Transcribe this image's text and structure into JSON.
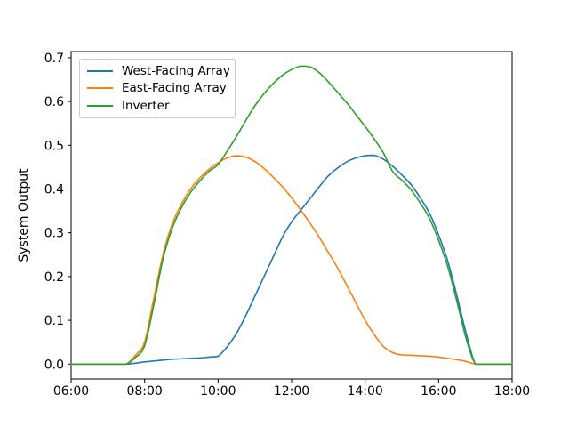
{
  "figure": {
    "background": "#ffffff"
  },
  "chart_data": {
    "type": "line",
    "title": "",
    "xlabel": "",
    "ylabel": "System Output",
    "grid": false,
    "axis_color": "#000000",
    "legend_border_color": "#cccccc",
    "legend_position": "upper left",
    "xlim": [
      6,
      18
    ],
    "ylim": [
      -0.034,
      0.714
    ],
    "x_ticks": {
      "values": [
        6,
        8,
        10,
        12,
        14,
        16,
        18
      ],
      "labels": [
        "06:00",
        "08:00",
        "10:00",
        "12:00",
        "14:00",
        "16:00",
        "18:00"
      ]
    },
    "y_ticks": {
      "values": [
        0.0,
        0.1,
        0.2,
        0.3,
        0.4,
        0.5,
        0.6,
        0.7
      ],
      "labels": [
        "0.0",
        "0.1",
        "0.2",
        "0.3",
        "0.4",
        "0.5",
        "0.6",
        "0.7"
      ]
    },
    "x_hours": [
      6.0,
      6.25,
      6.5,
      6.75,
      7.0,
      7.25,
      7.5,
      7.75,
      8.0,
      8.25,
      8.5,
      8.75,
      9.0,
      9.25,
      9.5,
      9.75,
      10.0,
      10.25,
      10.5,
      10.75,
      11.0,
      11.25,
      11.5,
      11.75,
      12.0,
      12.25,
      12.5,
      12.75,
      13.0,
      13.25,
      13.5,
      13.75,
      14.0,
      14.25,
      14.5,
      14.75,
      15.0,
      15.25,
      15.5,
      15.75,
      16.0,
      16.25,
      16.5,
      16.75,
      17.0,
      17.25,
      17.5,
      17.75,
      18.0
    ],
    "series": [
      {
        "name": "West-Facing Array",
        "color": "#1f77b4",
        "values": [
          0,
          0,
          0,
          0,
          0,
          0,
          0,
          0.002,
          0.005,
          0.007,
          0.009,
          0.011,
          0.012,
          0.013,
          0.014,
          0.016,
          0.018,
          0.04,
          0.07,
          0.11,
          0.155,
          0.2,
          0.245,
          0.29,
          0.325,
          0.352,
          0.378,
          0.405,
          0.43,
          0.448,
          0.462,
          0.471,
          0.476,
          0.477,
          0.468,
          0.452,
          0.432,
          0.41,
          0.38,
          0.345,
          0.295,
          0.235,
          0.155,
          0.07,
          0,
          0,
          0,
          0,
          0
        ]
      },
      {
        "name": "East-Facing Array",
        "color": "#ff7f0e",
        "values": [
          0,
          0,
          0,
          0,
          0,
          0,
          0,
          0.02,
          0.05,
          0.15,
          0.25,
          0.32,
          0.365,
          0.4,
          0.425,
          0.445,
          0.46,
          0.471,
          0.476,
          0.473,
          0.463,
          0.447,
          0.427,
          0.405,
          0.38,
          0.352,
          0.322,
          0.29,
          0.255,
          0.22,
          0.18,
          0.14,
          0.1,
          0.067,
          0.04,
          0.026,
          0.021,
          0.02,
          0.019,
          0.018,
          0.016,
          0.013,
          0.01,
          0.006,
          0,
          0,
          0,
          0,
          0
        ]
      },
      {
        "name": "Inverter",
        "color": "#2ca02c",
        "values": [
          0,
          0,
          0,
          0,
          0,
          0,
          0,
          0.015,
          0.042,
          0.135,
          0.24,
          0.31,
          0.357,
          0.392,
          0.418,
          0.44,
          0.456,
          0.487,
          0.52,
          0.556,
          0.59,
          0.618,
          0.641,
          0.66,
          0.673,
          0.681,
          0.679,
          0.666,
          0.645,
          0.621,
          0.597,
          0.57,
          0.543,
          0.514,
          0.482,
          0.44,
          0.42,
          0.398,
          0.368,
          0.333,
          0.283,
          0.222,
          0.142,
          0.058,
          0,
          0,
          0,
          0,
          0
        ]
      }
    ]
  }
}
